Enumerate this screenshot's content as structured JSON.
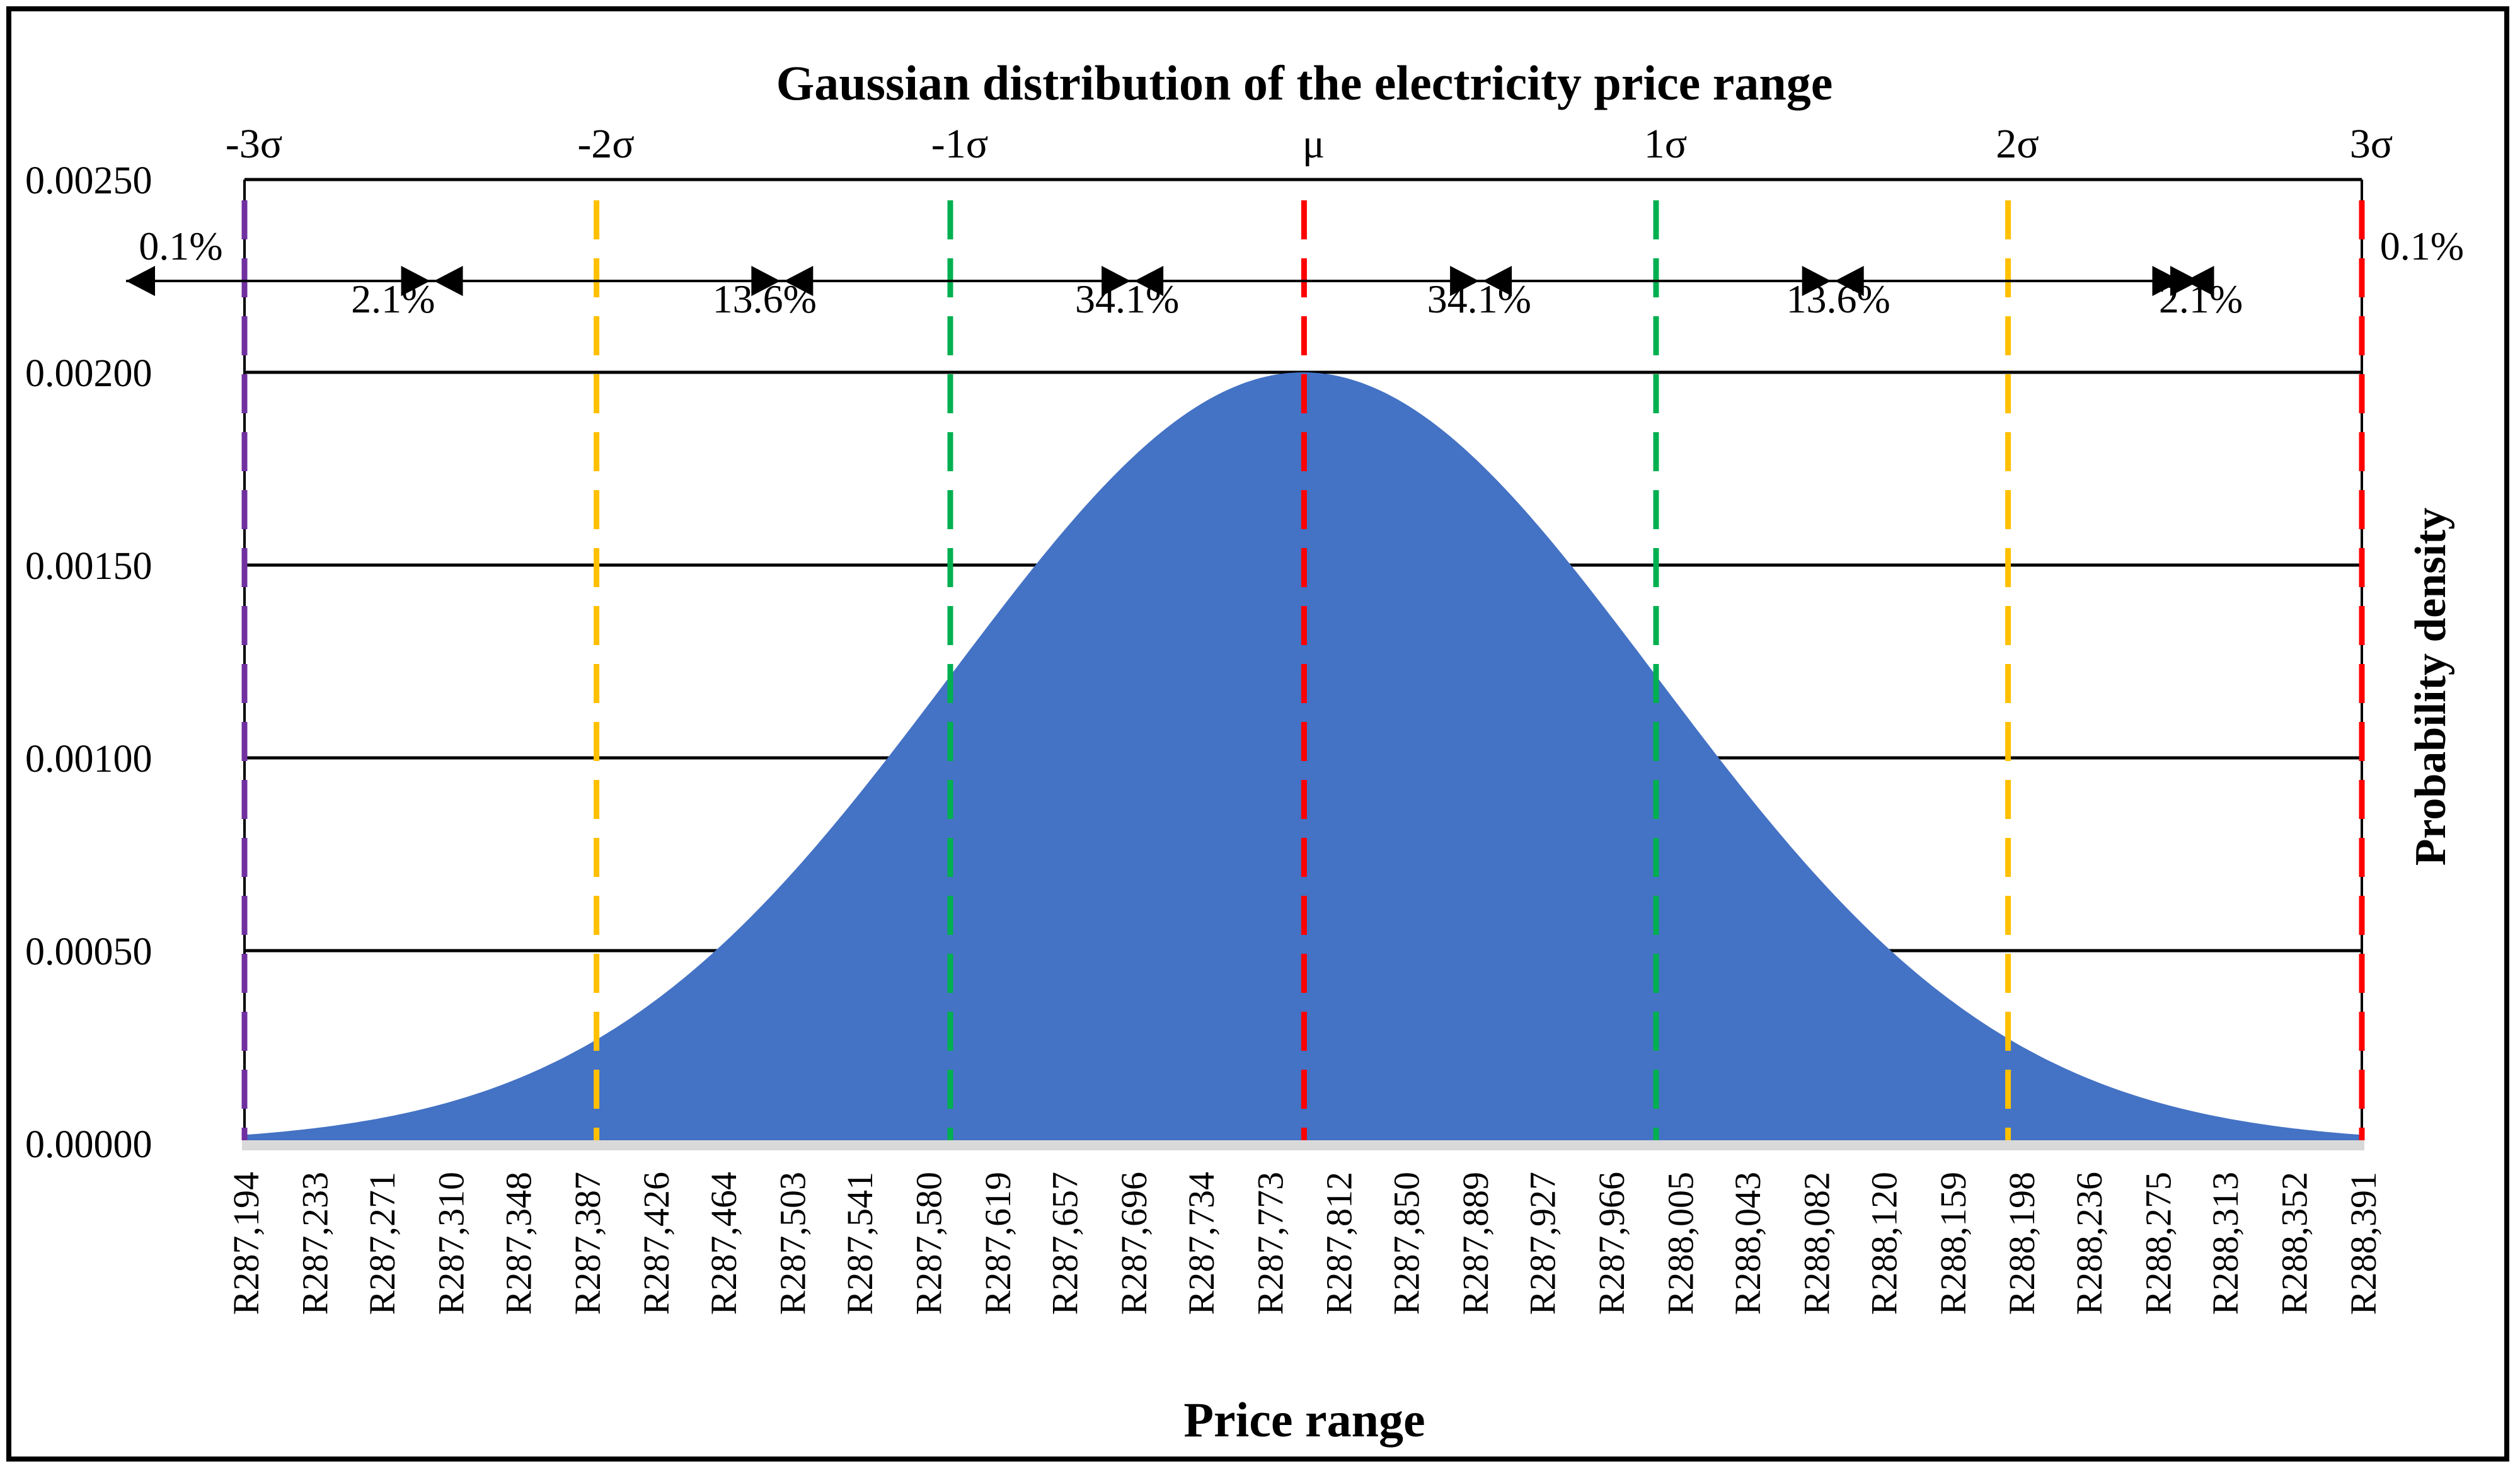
{
  "chart_data": {
    "type": "area",
    "title": "Gaussian distribution of the electricity price range",
    "xlabel": "Price range",
    "ylabel": "Probability density",
    "ylim": [
      0,
      0.0025
    ],
    "y_ticks": [
      "0.00000",
      "0.00050",
      "0.00100",
      "0.00150",
      "0.00200",
      "0.00250"
    ],
    "y_tick_values": [
      0,
      0.0005,
      0.001,
      0.0015,
      0.002,
      0.0025
    ],
    "grid": true,
    "distribution": {
      "mean": 287792.5,
      "std": 199.5,
      "peak_density": 0.002
    },
    "categories": [
      "R287,194",
      "R287,233",
      "R287,271",
      "R287,310",
      "R287,348",
      "R287,387",
      "R287,426",
      "R287,464",
      "R287,503",
      "R287,541",
      "R287,580",
      "R287,619",
      "R287,657",
      "R287,696",
      "R287,734",
      "R287,773",
      "R287,812",
      "R287,850",
      "R287,889",
      "R287,927",
      "R287,966",
      "R288,005",
      "R288,043",
      "R288,082",
      "R288,120",
      "R288,159",
      "R288,198",
      "R288,236",
      "R288,275",
      "R288,313",
      "R288,352",
      "R288,391"
    ],
    "x_values": [
      287194,
      287233,
      287271,
      287310,
      287348,
      287387,
      287426,
      287464,
      287503,
      287541,
      287580,
      287619,
      287657,
      287696,
      287734,
      287773,
      287812,
      287850,
      287889,
      287927,
      287966,
      288005,
      288043,
      288082,
      288120,
      288159,
      288198,
      288236,
      288275,
      288313,
      288352,
      288391
    ],
    "fill_color": "#4472C4",
    "sigma_lines": [
      {
        "label": "-3σ",
        "x": 287194,
        "color": "#7030A0"
      },
      {
        "label": "-2σ",
        "x": 287393,
        "color": "#FFC000"
      },
      {
        "label": "-1σ",
        "x": 287593,
        "color": "#00B050"
      },
      {
        "label": "μ",
        "x": 287793,
        "color": "#FF0000"
      },
      {
        "label": "1σ",
        "x": 287992,
        "color": "#00B050"
      },
      {
        "label": "2σ",
        "x": 288191,
        "color": "#FFC000"
      },
      {
        "label": "3σ",
        "x": 288391,
        "color": "#FF0000"
      }
    ],
    "percent_annotations": [
      {
        "label": "0.1%",
        "x": 287158
      },
      {
        "label": "2.1%",
        "x": 287278
      },
      {
        "label": "13.6%",
        "x": 287488
      },
      {
        "label": "34.1%",
        "x": 287693
      },
      {
        "label": "34.1%",
        "x": 287892
      },
      {
        "label": "13.6%",
        "x": 288095
      },
      {
        "label": "2.1%",
        "x": 288300
      },
      {
        "label": "0.1%",
        "x": 288425
      }
    ],
    "arrow_ticks": [
      287300,
      287498,
      287696,
      287893,
      288092,
      288290
    ]
  }
}
